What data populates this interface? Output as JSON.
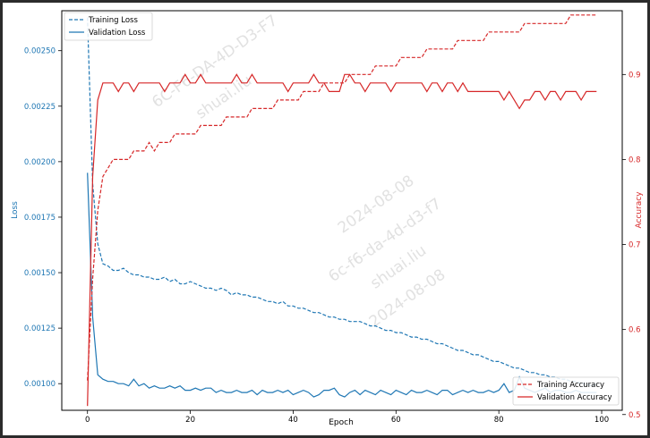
{
  "colors": {
    "loss": "#1f77b4",
    "accuracy": "#d62728",
    "axis": "#000000",
    "watermark": "#c8c8c8"
  },
  "watermark_lines": [
    "6C-F6-DA-4D-D3-F7",
    "shuai.liu",
    "2024-08-08",
    "6c-f6-da-4d-d3-f7",
    "shuai.liu",
    "2024-08-08"
  ],
  "chart_data": {
    "type": "line",
    "xlabel": "Epoch",
    "ylabel_left": "Loss",
    "ylabel_right": "Accuracy",
    "xlim": [
      -5,
      104
    ],
    "ylim_left": [
      0.00088,
      0.00268
    ],
    "ylim_right": [
      0.505,
      0.975
    ],
    "x_ticks": [
      0,
      20,
      40,
      60,
      80,
      100
    ],
    "x_tick_labels": [
      "0",
      "20",
      "40",
      "60",
      "80",
      "100"
    ],
    "y_left_ticks": [
      0.001,
      0.00125,
      0.0015,
      0.00175,
      0.002,
      0.00225,
      0.0025
    ],
    "y_left_tick_labels": [
      "0.00100",
      "0.00125",
      "0.00150",
      "0.00175",
      "0.00200",
      "0.00225",
      "0.00250"
    ],
    "y_right_ticks": [
      0.5,
      0.6,
      0.7,
      0.8,
      0.9
    ],
    "y_right_tick_labels": [
      "0.5",
      "0.6",
      "0.7",
      "0.8",
      "0.9"
    ],
    "grid": false,
    "legend_left_placement": "upper-left",
    "legend_right_placement": "lower-right",
    "x": [
      0,
      1,
      2,
      3,
      4,
      5,
      6,
      7,
      8,
      9,
      10,
      11,
      12,
      13,
      14,
      15,
      16,
      17,
      18,
      19,
      20,
      21,
      22,
      23,
      24,
      25,
      26,
      27,
      28,
      29,
      30,
      31,
      32,
      33,
      34,
      35,
      36,
      37,
      38,
      39,
      40,
      41,
      42,
      43,
      44,
      45,
      46,
      47,
      48,
      49,
      50,
      51,
      52,
      53,
      54,
      55,
      56,
      57,
      58,
      59,
      60,
      61,
      62,
      63,
      64,
      65,
      66,
      67,
      68,
      69,
      70,
      71,
      72,
      73,
      74,
      75,
      76,
      77,
      78,
      79,
      80,
      81,
      82,
      83,
      84,
      85,
      86,
      87,
      88,
      89,
      90,
      91,
      92,
      93,
      94,
      95,
      96,
      97,
      98,
      99
    ],
    "series": [
      {
        "name": "Training Loss",
        "axis": "left",
        "style": "dashed",
        "color": "#1f77b4",
        "values": [
          0.00265,
          0.0019,
          0.00163,
          0.00154,
          0.00153,
          0.00151,
          0.00151,
          0.00152,
          0.0015,
          0.00149,
          0.00149,
          0.00148,
          0.00148,
          0.00147,
          0.00147,
          0.00148,
          0.00146,
          0.00147,
          0.00145,
          0.00145,
          0.00146,
          0.00145,
          0.00144,
          0.00143,
          0.00143,
          0.00142,
          0.00143,
          0.00142,
          0.0014,
          0.00141,
          0.0014,
          0.0014,
          0.00139,
          0.00139,
          0.00138,
          0.00137,
          0.00137,
          0.00136,
          0.00137,
          0.00135,
          0.00135,
          0.00134,
          0.00134,
          0.00133,
          0.00132,
          0.00132,
          0.00131,
          0.0013,
          0.0013,
          0.00129,
          0.00129,
          0.00128,
          0.00128,
          0.00128,
          0.00127,
          0.00126,
          0.00126,
          0.00125,
          0.00124,
          0.00124,
          0.00123,
          0.00123,
          0.00122,
          0.00121,
          0.00121,
          0.0012,
          0.0012,
          0.00119,
          0.00118,
          0.00118,
          0.00117,
          0.00116,
          0.00115,
          0.00115,
          0.00114,
          0.00113,
          0.00113,
          0.00112,
          0.00111,
          0.0011,
          0.0011,
          0.00109,
          0.00108,
          0.00107,
          0.00107,
          0.00106,
          0.00105,
          0.00105,
          0.00104,
          0.00104,
          0.00103,
          0.00103,
          0.00102,
          0.00102,
          0.00101,
          0.00101,
          0.001,
          0.001,
          0.00099,
          0.001
        ]
      },
      {
        "name": "Validation Loss",
        "axis": "left",
        "style": "solid",
        "color": "#1f77b4",
        "values": [
          0.00195,
          0.0013,
          0.00104,
          0.00102,
          0.00101,
          0.00101,
          0.001,
          0.001,
          0.00099,
          0.00102,
          0.00099,
          0.001,
          0.00098,
          0.00099,
          0.00098,
          0.00098,
          0.00099,
          0.00098,
          0.00099,
          0.00097,
          0.00097,
          0.00098,
          0.00097,
          0.00098,
          0.00098,
          0.00096,
          0.00097,
          0.00096,
          0.00096,
          0.00097,
          0.00096,
          0.00096,
          0.00097,
          0.00095,
          0.00097,
          0.00096,
          0.00096,
          0.00097,
          0.00096,
          0.00097,
          0.00095,
          0.00096,
          0.00097,
          0.00096,
          0.00094,
          0.00095,
          0.00097,
          0.00097,
          0.00098,
          0.00095,
          0.00094,
          0.00096,
          0.00097,
          0.00095,
          0.00097,
          0.00096,
          0.00095,
          0.00097,
          0.00096,
          0.00095,
          0.00097,
          0.00096,
          0.00095,
          0.00097,
          0.00096,
          0.00096,
          0.00097,
          0.00096,
          0.00095,
          0.00097,
          0.00097,
          0.00095,
          0.00096,
          0.00097,
          0.00096,
          0.00097,
          0.00096,
          0.00096,
          0.00097,
          0.00096,
          0.00097,
          0.001,
          0.00096,
          0.00097,
          0.00103,
          0.00098,
          0.00097,
          0.00096,
          0.00097,
          0.00098,
          0.00096,
          0.00097,
          0.00097,
          0.00096,
          0.00096,
          0.00097,
          0.00096,
          0.00096,
          0.00096,
          0.00096
        ]
      },
      {
        "name": "Training Accuracy",
        "axis": "right",
        "style": "dashed",
        "color": "#d62728",
        "values": [
          0.54,
          0.66,
          0.74,
          0.78,
          0.79,
          0.8,
          0.8,
          0.8,
          0.8,
          0.81,
          0.81,
          0.81,
          0.82,
          0.81,
          0.82,
          0.82,
          0.82,
          0.83,
          0.83,
          0.83,
          0.83,
          0.83,
          0.84,
          0.84,
          0.84,
          0.84,
          0.84,
          0.85,
          0.85,
          0.85,
          0.85,
          0.85,
          0.86,
          0.86,
          0.86,
          0.86,
          0.86,
          0.87,
          0.87,
          0.87,
          0.87,
          0.87,
          0.88,
          0.88,
          0.88,
          0.88,
          0.89,
          0.89,
          0.89,
          0.89,
          0.89,
          0.9,
          0.9,
          0.9,
          0.9,
          0.9,
          0.91,
          0.91,
          0.91,
          0.91,
          0.91,
          0.92,
          0.92,
          0.92,
          0.92,
          0.92,
          0.93,
          0.93,
          0.93,
          0.93,
          0.93,
          0.93,
          0.94,
          0.94,
          0.94,
          0.94,
          0.94,
          0.94,
          0.95,
          0.95,
          0.95,
          0.95,
          0.95,
          0.95,
          0.95,
          0.96,
          0.96,
          0.96,
          0.96,
          0.96,
          0.96,
          0.96,
          0.96,
          0.96,
          0.97,
          0.97,
          0.97,
          0.97,
          0.97,
          0.97
        ]
      },
      {
        "name": "Validation Accuracy",
        "axis": "right",
        "style": "solid",
        "color": "#d62728",
        "values": [
          0.51,
          0.78,
          0.87,
          0.89,
          0.89,
          0.89,
          0.88,
          0.89,
          0.89,
          0.88,
          0.89,
          0.89,
          0.89,
          0.89,
          0.89,
          0.88,
          0.89,
          0.89,
          0.89,
          0.9,
          0.89,
          0.89,
          0.9,
          0.89,
          0.89,
          0.89,
          0.89,
          0.89,
          0.89,
          0.9,
          0.89,
          0.89,
          0.9,
          0.89,
          0.89,
          0.89,
          0.89,
          0.89,
          0.89,
          0.88,
          0.89,
          0.89,
          0.89,
          0.89,
          0.9,
          0.89,
          0.89,
          0.88,
          0.88,
          0.88,
          0.9,
          0.9,
          0.89,
          0.89,
          0.88,
          0.89,
          0.89,
          0.89,
          0.89,
          0.88,
          0.89,
          0.89,
          0.89,
          0.89,
          0.89,
          0.89,
          0.88,
          0.89,
          0.89,
          0.88,
          0.89,
          0.89,
          0.88,
          0.89,
          0.88,
          0.88,
          0.88,
          0.88,
          0.88,
          0.88,
          0.88,
          0.87,
          0.88,
          0.87,
          0.86,
          0.87,
          0.87,
          0.88,
          0.88,
          0.87,
          0.88,
          0.88,
          0.87,
          0.88,
          0.88,
          0.88,
          0.87,
          0.88,
          0.88,
          0.88
        ]
      }
    ]
  }
}
